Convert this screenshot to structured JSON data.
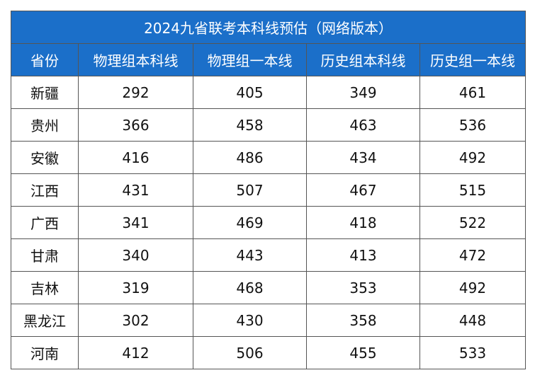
{
  "header": {
    "title": "2024九省联考本科线预估（网络版本）"
  },
  "table": {
    "columns": [
      "省份",
      "物理组本科线",
      "物理组一本线",
      "历史组本科线",
      "历史组一本线"
    ],
    "rows": [
      [
        "新疆",
        292,
        405,
        349,
        461
      ],
      [
        "贵州",
        366,
        458,
        463,
        536
      ],
      [
        "安徽",
        416,
        486,
        434,
        492
      ],
      [
        "江西",
        431,
        507,
        467,
        515
      ],
      [
        "广西",
        341,
        469,
        418,
        522
      ],
      [
        "甘肃",
        340,
        443,
        413,
        472
      ],
      [
        "吉林",
        319,
        468,
        353,
        492
      ],
      [
        "黑龙江",
        302,
        430,
        358,
        448
      ],
      [
        "河南",
        412,
        506,
        455,
        533
      ]
    ]
  }
}
